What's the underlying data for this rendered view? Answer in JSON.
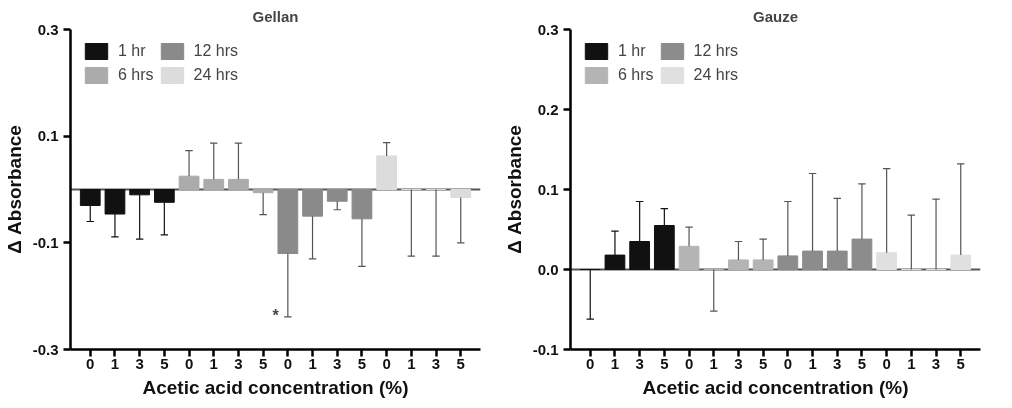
{
  "chart_data": [
    {
      "type": "bar",
      "title": "Gellan",
      "xlabel": "Acetic acid concentration (%)",
      "ylabel": "Δ Absorbance",
      "categories": [
        "0",
        "1",
        "3",
        "5",
        "0",
        "1",
        "3",
        "5",
        "0",
        "1",
        "3",
        "5",
        "0",
        "1",
        "3",
        "5"
      ],
      "series": [
        {
          "name": "1 hr",
          "color": "#111111",
          "values": [
            -0.03,
            -0.046,
            -0.01,
            -0.024,
            null,
            null,
            null,
            null,
            null,
            null,
            null,
            null,
            null,
            null,
            null,
            null
          ],
          "errors": [
            [
              -0.06,
              -0.03
            ],
            [
              -0.089,
              -0.046
            ],
            [
              -0.093,
              -0.01
            ],
            [
              -0.085,
              -0.024
            ],
            null,
            null,
            null,
            null,
            null,
            null,
            null,
            null,
            null,
            null,
            null,
            null
          ]
        },
        {
          "name": "6 hrs",
          "color": "#ababab",
          "values": [
            null,
            null,
            null,
            null,
            0.025,
            0.019,
            0.019,
            -0.006,
            null,
            null,
            null,
            null,
            null,
            null,
            null,
            null
          ],
          "errors": [
            null,
            null,
            null,
            null,
            [
              0.025,
              0.073
            ],
            [
              0.019,
              0.087
            ],
            [
              0.019,
              0.087
            ],
            [
              -0.047,
              -0.006
            ],
            null,
            null,
            null,
            null,
            null,
            null,
            null,
            null
          ]
        },
        {
          "name": "12 hrs",
          "color": "#8a8a8a",
          "values": [
            null,
            null,
            null,
            null,
            null,
            null,
            null,
            null,
            -0.12,
            -0.05,
            -0.022,
            -0.055,
            null,
            null,
            null,
            null
          ],
          "errors": [
            null,
            null,
            null,
            null,
            null,
            null,
            null,
            null,
            [
              -0.239,
              -0.12
            ],
            [
              -0.13,
              -0.05
            ],
            [
              -0.038,
              -0.022
            ],
            [
              -0.144,
              -0.055
            ],
            null,
            null,
            null,
            null
          ]
        },
        {
          "name": "24 hrs",
          "color": "#dcdcdc",
          "values": [
            null,
            null,
            null,
            null,
            null,
            null,
            null,
            null,
            null,
            null,
            null,
            null,
            0.063,
            0.0,
            0.0,
            -0.015
          ],
          "errors": [
            null,
            null,
            null,
            null,
            null,
            null,
            null,
            null,
            null,
            null,
            null,
            null,
            [
              0.063,
              0.088
            ],
            [
              -0.125,
              0.0
            ],
            [
              -0.125,
              0.0
            ],
            [
              -0.1,
              -0.015
            ]
          ]
        }
      ],
      "ylim": [
        -0.3,
        0.3
      ],
      "yticks": [
        -0.3,
        -0.1,
        0.1,
        0.3
      ],
      "ref_lines": [
        {
          "axis": "y",
          "value": 0,
          "label": null
        }
      ],
      "annotations": [
        "*"
      ],
      "legend": "top left",
      "grid": false
    },
    {
      "type": "bar",
      "title": "Gauze",
      "xlabel": "Acetic acid concentration (%)",
      "ylabel": "Δ Absorbance",
      "categories": [
        "0",
        "1",
        "3",
        "5",
        "0",
        "1",
        "3",
        "5",
        "0",
        "1",
        "3",
        "5",
        "0",
        "1",
        "3",
        "5"
      ],
      "series": [
        {
          "name": "1 hr",
          "color": "#111111",
          "values": [
            0.0,
            0.018,
            0.035,
            0.055,
            null,
            null,
            null,
            null,
            null,
            null,
            null,
            null,
            null,
            null,
            null,
            null
          ],
          "errors": [
            [
              -0.062,
              0.0
            ],
            [
              0.018,
              0.048
            ],
            [
              0.035,
              0.085
            ],
            [
              0.055,
              0.076
            ],
            null,
            null,
            null,
            null,
            null,
            null,
            null,
            null,
            null,
            null,
            null,
            null
          ]
        },
        {
          "name": "6 hrs",
          "color": "#b4b4b4",
          "values": [
            null,
            null,
            null,
            null,
            0.029,
            0.0,
            0.012,
            0.012,
            null,
            null,
            null,
            null,
            null,
            null,
            null,
            null
          ],
          "errors": [
            null,
            null,
            null,
            null,
            [
              0.029,
              0.053
            ],
            [
              -0.052,
              0.0
            ],
            [
              0.012,
              0.035
            ],
            [
              0.012,
              0.038
            ],
            null,
            null,
            null,
            null,
            null,
            null,
            null,
            null
          ]
        },
        {
          "name": "12 hrs",
          "color": "#8c8c8c",
          "values": [
            null,
            null,
            null,
            null,
            null,
            null,
            null,
            null,
            0.017,
            0.023,
            0.023,
            0.038,
            null,
            null,
            null,
            null
          ],
          "errors": [
            null,
            null,
            null,
            null,
            null,
            null,
            null,
            null,
            [
              0.017,
              0.085
            ],
            [
              0.023,
              0.12
            ],
            [
              0.023,
              0.089
            ],
            [
              0.038,
              0.107
            ],
            null,
            null,
            null,
            null
          ]
        },
        {
          "name": "24 hrs",
          "color": "#e0e0e0",
          "values": [
            null,
            null,
            null,
            null,
            null,
            null,
            null,
            null,
            null,
            null,
            null,
            null,
            0.021,
            0.0,
            0.0,
            0.018
          ],
          "errors": [
            null,
            null,
            null,
            null,
            null,
            null,
            null,
            null,
            null,
            null,
            null,
            null,
            [
              0.021,
              0.126
            ],
            [
              0.0,
              0.068
            ],
            [
              0.0,
              0.088
            ],
            [
              0.018,
              0.132
            ]
          ]
        }
      ],
      "ylim": [
        -0.1,
        0.3
      ],
      "yticks": [
        {
          "value": -0.1,
          "label": "-0.1"
        },
        {
          "value": 0,
          "label": "0.0"
        },
        0.1,
        0.2,
        0.3
      ],
      "ref_lines": [
        {
          "axis": "y",
          "value": 0,
          "label": null
        }
      ],
      "legend": "top left",
      "grid": false
    }
  ]
}
